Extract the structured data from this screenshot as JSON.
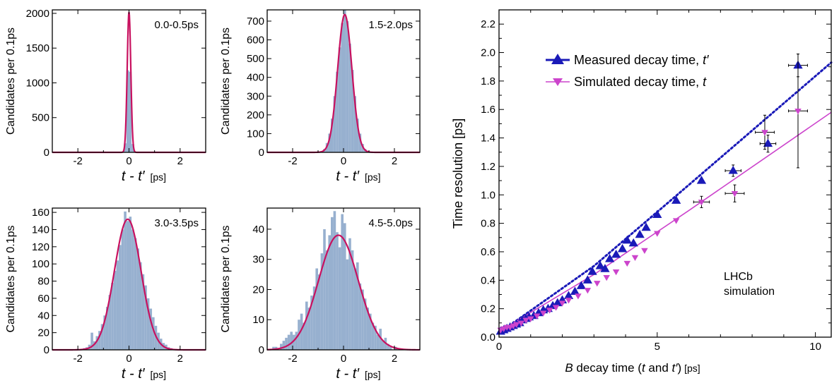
{
  "chart_data": [
    {
      "type": "bar",
      "panel_label": "0.0-0.5ps",
      "xlabel_main": "t - t′",
      "xlabel_unit": "[ps]",
      "ylabel": "Candidates per 0.1ps",
      "xlim": [
        -3,
        3
      ],
      "ylim": [
        0,
        2050
      ],
      "x_ticks": [
        -2,
        0,
        2
      ],
      "y_ticks": [
        0,
        500,
        1000,
        1500,
        2000
      ],
      "gaussian": {
        "mean": 0.0,
        "sigma": 0.07,
        "peak": 2020
      },
      "bins": [
        {
          "x": -0.25,
          "y": 8
        },
        {
          "x": -0.15,
          "y": 130
        },
        {
          "x": -0.05,
          "y": 1180
        },
        {
          "x": 0.05,
          "y": 1160
        },
        {
          "x": 0.15,
          "y": 120
        },
        {
          "x": 0.25,
          "y": 6
        }
      ]
    },
    {
      "type": "bar",
      "panel_label": "1.5-2.0ps",
      "xlabel_main": "t - t′",
      "xlabel_unit": "[ps]",
      "ylabel": "Candidates per 0.1ps",
      "xlim": [
        -3,
        3
      ],
      "ylim": [
        0,
        760
      ],
      "x_ticks": [
        -2,
        0,
        2
      ],
      "y_ticks": [
        0,
        100,
        200,
        300,
        400,
        500,
        600,
        700
      ],
      "gaussian": {
        "mean": 0.05,
        "sigma": 0.28,
        "peak": 735
      },
      "bins": [
        {
          "x": -0.95,
          "y": 2
        },
        {
          "x": -0.85,
          "y": 6
        },
        {
          "x": -0.75,
          "y": 18
        },
        {
          "x": -0.65,
          "y": 50
        },
        {
          "x": -0.55,
          "y": 100
        },
        {
          "x": -0.45,
          "y": 180
        },
        {
          "x": -0.35,
          "y": 300
        },
        {
          "x": -0.25,
          "y": 430
        },
        {
          "x": -0.15,
          "y": 560
        },
        {
          "x": -0.05,
          "y": 690
        },
        {
          "x": 0.05,
          "y": 760
        },
        {
          "x": 0.15,
          "y": 700
        },
        {
          "x": 0.25,
          "y": 580
        },
        {
          "x": 0.35,
          "y": 440
        },
        {
          "x": 0.45,
          "y": 300
        },
        {
          "x": 0.55,
          "y": 180
        },
        {
          "x": 0.65,
          "y": 100
        },
        {
          "x": 0.75,
          "y": 45
        },
        {
          "x": 0.85,
          "y": 18
        },
        {
          "x": 0.95,
          "y": 6
        }
      ]
    },
    {
      "type": "bar",
      "panel_label": "3.0-3.5ps",
      "xlabel_main": "t - t′",
      "xlabel_unit": "[ps]",
      "ylabel": "Candidates per 0.1ps",
      "xlim": [
        -3,
        3
      ],
      "ylim": [
        0,
        165
      ],
      "x_ticks": [
        -2,
        0,
        2
      ],
      "y_ticks": [
        0,
        20,
        40,
        60,
        80,
        100,
        120,
        140,
        160
      ],
      "gaussian": {
        "mean": -0.05,
        "sigma": 0.52,
        "peak": 152
      },
      "bins": [
        {
          "x": -1.75,
          "y": 2
        },
        {
          "x": -1.65,
          "y": 3
        },
        {
          "x": -1.55,
          "y": 6
        },
        {
          "x": -1.45,
          "y": 20
        },
        {
          "x": -1.35,
          "y": 10
        },
        {
          "x": -1.25,
          "y": 16
        },
        {
          "x": -1.15,
          "y": 22
        },
        {
          "x": -1.05,
          "y": 30
        },
        {
          "x": -0.95,
          "y": 40
        },
        {
          "x": -0.85,
          "y": 50
        },
        {
          "x": -0.75,
          "y": 64
        },
        {
          "x": -0.65,
          "y": 78
        },
        {
          "x": -0.55,
          "y": 92
        },
        {
          "x": -0.45,
          "y": 104
        },
        {
          "x": -0.35,
          "y": 122
        },
        {
          "x": -0.25,
          "y": 140
        },
        {
          "x": -0.15,
          "y": 161
        },
        {
          "x": -0.05,
          "y": 150
        },
        {
          "x": 0.05,
          "y": 155
        },
        {
          "x": 0.15,
          "y": 140
        },
        {
          "x": 0.25,
          "y": 130
        },
        {
          "x": 0.35,
          "y": 118
        },
        {
          "x": 0.45,
          "y": 102
        },
        {
          "x": 0.55,
          "y": 88
        },
        {
          "x": 0.65,
          "y": 75
        },
        {
          "x": 0.75,
          "y": 60
        },
        {
          "x": 0.85,
          "y": 48
        },
        {
          "x": 0.95,
          "y": 38
        },
        {
          "x": 1.05,
          "y": 28
        },
        {
          "x": 1.15,
          "y": 20
        },
        {
          "x": 1.25,
          "y": 13
        },
        {
          "x": 1.35,
          "y": 8
        },
        {
          "x": 1.45,
          "y": 6
        },
        {
          "x": 1.55,
          "y": 3
        },
        {
          "x": 1.65,
          "y": 2
        }
      ]
    },
    {
      "type": "bar",
      "panel_label": "4.5-5.0ps",
      "xlabel_main": "t - t′",
      "xlabel_unit": "[ps]",
      "ylabel": "Candidates per 0.1ps",
      "xlim": [
        -3,
        3
      ],
      "ylim": [
        0,
        47
      ],
      "x_ticks": [
        -2,
        0,
        2
      ],
      "y_ticks": [
        0,
        10,
        20,
        30,
        40
      ],
      "gaussian": {
        "mean": -0.2,
        "sigma": 0.78,
        "peak": 38
      },
      "bins": [
        {
          "x": -2.75,
          "y": 1
        },
        {
          "x": -2.65,
          "y": 1
        },
        {
          "x": -2.45,
          "y": 2
        },
        {
          "x": -2.35,
          "y": 3
        },
        {
          "x": -2.25,
          "y": 4
        },
        {
          "x": -2.15,
          "y": 5
        },
        {
          "x": -2.05,
          "y": 6
        },
        {
          "x": -1.95,
          "y": 5
        },
        {
          "x": -1.85,
          "y": 6
        },
        {
          "x": -1.75,
          "y": 10
        },
        {
          "x": -1.65,
          "y": 12
        },
        {
          "x": -1.55,
          "y": 9
        },
        {
          "x": -1.45,
          "y": 16
        },
        {
          "x": -1.35,
          "y": 14
        },
        {
          "x": -1.25,
          "y": 18
        },
        {
          "x": -1.15,
          "y": 21
        },
        {
          "x": -1.05,
          "y": 27
        },
        {
          "x": -0.95,
          "y": 25
        },
        {
          "x": -0.85,
          "y": 32
        },
        {
          "x": -0.75,
          "y": 40
        },
        {
          "x": -0.65,
          "y": 33
        },
        {
          "x": -0.55,
          "y": 38
        },
        {
          "x": -0.45,
          "y": 44
        },
        {
          "x": -0.35,
          "y": 46
        },
        {
          "x": -0.25,
          "y": 39
        },
        {
          "x": -0.15,
          "y": 34
        },
        {
          "x": -0.05,
          "y": 45
        },
        {
          "x": 0.05,
          "y": 42
        },
        {
          "x": 0.15,
          "y": 30
        },
        {
          "x": 0.25,
          "y": 37
        },
        {
          "x": 0.35,
          "y": 33
        },
        {
          "x": 0.45,
          "y": 27
        },
        {
          "x": 0.55,
          "y": 29
        },
        {
          "x": 0.65,
          "y": 22
        },
        {
          "x": 0.75,
          "y": 20
        },
        {
          "x": 0.85,
          "y": 17
        },
        {
          "x": 0.95,
          "y": 14
        },
        {
          "x": 1.05,
          "y": 12
        },
        {
          "x": 1.15,
          "y": 9
        },
        {
          "x": 1.25,
          "y": 8
        },
        {
          "x": 1.35,
          "y": 5
        },
        {
          "x": 1.45,
          "y": 7
        },
        {
          "x": 1.55,
          "y": 3
        },
        {
          "x": 1.65,
          "y": 4
        },
        {
          "x": 1.75,
          "y": 2
        },
        {
          "x": 1.85,
          "y": 1
        },
        {
          "x": 2.05,
          "y": 1
        }
      ]
    },
    {
      "type": "scatter",
      "xlabel_pre": "B",
      "xlabel_main": " decay time (",
      "xlabel_t": "t",
      "xlabel_and": " and ",
      "xlabel_tp": "t′",
      "xlabel_close": ")",
      "xlabel_unit": "[ps]",
      "ylabel": "Time resolution  [ps]",
      "xlim": [
        0,
        10.5
      ],
      "ylim": [
        0,
        2.3
      ],
      "x_ticks": [
        0,
        5,
        10
      ],
      "y_ticks": [
        0.0,
        0.2,
        0.4,
        0.6,
        0.8,
        1.0,
        1.2,
        1.4,
        1.6,
        1.8,
        2.0,
        2.2
      ],
      "annotation_line1": "LHCb",
      "annotation_line2": "simulation",
      "legend_position": "top-left",
      "series": [
        {
          "name": "Measured decay time, t′",
          "legend_text": "Measured decay time, ",
          "legend_var": "t′",
          "color": "#1a1ab8",
          "marker": "triangle-up",
          "fit": {
            "style": "dotted",
            "points": [
              [
                0,
                0.03
              ],
              [
                3.0,
                0.5
              ],
              [
                6.0,
                1.07
              ],
              [
                10.5,
                1.93
              ]
            ]
          },
          "points": [
            {
              "x": 0.05,
              "y": 0.04
            },
            {
              "x": 0.15,
              "y": 0.05
            },
            {
              "x": 0.25,
              "y": 0.06
            },
            {
              "x": 0.35,
              "y": 0.07
            },
            {
              "x": 0.45,
              "y": 0.08
            },
            {
              "x": 0.55,
              "y": 0.09
            },
            {
              "x": 0.65,
              "y": 0.1
            },
            {
              "x": 0.75,
              "y": 0.12
            },
            {
              "x": 0.85,
              "y": 0.13
            },
            {
              "x": 0.95,
              "y": 0.14
            },
            {
              "x": 1.1,
              "y": 0.15
            },
            {
              "x": 1.25,
              "y": 0.17
            },
            {
              "x": 1.4,
              "y": 0.19
            },
            {
              "x": 1.55,
              "y": 0.2
            },
            {
              "x": 1.7,
              "y": 0.22
            },
            {
              "x": 1.85,
              "y": 0.24
            },
            {
              "x": 2.0,
              "y": 0.26
            },
            {
              "x": 2.2,
              "y": 0.29
            },
            {
              "x": 2.4,
              "y": 0.32
            },
            {
              "x": 2.6,
              "y": 0.36
            },
            {
              "x": 2.8,
              "y": 0.4
            },
            {
              "x": 2.95,
              "y": 0.46
            },
            {
              "x": 3.2,
              "y": 0.5
            },
            {
              "x": 3.35,
              "y": 0.48
            },
            {
              "x": 3.5,
              "y": 0.55
            },
            {
              "x": 3.7,
              "y": 0.58
            },
            {
              "x": 3.9,
              "y": 0.62
            },
            {
              "x": 4.05,
              "y": 0.68
            },
            {
              "x": 4.25,
              "y": 0.66
            },
            {
              "x": 4.45,
              "y": 0.72
            },
            {
              "x": 4.65,
              "y": 0.77
            },
            {
              "x": 5.0,
              "y": 0.86
            },
            {
              "x": 5.6,
              "y": 0.96
            },
            {
              "x": 6.4,
              "y": 1.1
            },
            {
              "x": 7.4,
              "y": 1.17,
              "ex": 0.25,
              "ey": 0.04
            },
            {
              "x": 8.5,
              "y": 1.36,
              "ex": 0.25,
              "ey": 0.06
            },
            {
              "x": 9.45,
              "y": 1.91,
              "ex": 0.3,
              "ey": 0.08
            }
          ]
        },
        {
          "name": "Simulated decay time, t",
          "legend_text": "Simulated decay time, ",
          "legend_var": "t",
          "color": "#cc44cc",
          "marker": "triangle-down",
          "fit": {
            "style": "solid",
            "points": [
              [
                0,
                0.04
              ],
              [
                3.0,
                0.44
              ],
              [
                6.0,
                0.89
              ],
              [
                10.5,
                1.58
              ]
            ]
          },
          "points": [
            {
              "x": 0.05,
              "y": 0.05
            },
            {
              "x": 0.15,
              "y": 0.06
            },
            {
              "x": 0.25,
              "y": 0.07
            },
            {
              "x": 0.35,
              "y": 0.07
            },
            {
              "x": 0.45,
              "y": 0.08
            },
            {
              "x": 0.55,
              "y": 0.09
            },
            {
              "x": 0.7,
              "y": 0.1
            },
            {
              "x": 0.85,
              "y": 0.12
            },
            {
              "x": 1.0,
              "y": 0.13
            },
            {
              "x": 1.2,
              "y": 0.15
            },
            {
              "x": 1.4,
              "y": 0.17
            },
            {
              "x": 1.6,
              "y": 0.19
            },
            {
              "x": 1.8,
              "y": 0.21
            },
            {
              "x": 2.0,
              "y": 0.24
            },
            {
              "x": 2.2,
              "y": 0.26
            },
            {
              "x": 2.5,
              "y": 0.29
            },
            {
              "x": 2.8,
              "y": 0.33
            },
            {
              "x": 3.1,
              "y": 0.38
            },
            {
              "x": 3.4,
              "y": 0.42
            },
            {
              "x": 3.7,
              "y": 0.46
            },
            {
              "x": 4.05,
              "y": 0.52
            },
            {
              "x": 4.3,
              "y": 0.56
            },
            {
              "x": 4.6,
              "y": 0.61
            },
            {
              "x": 5.0,
              "y": 0.73
            },
            {
              "x": 5.6,
              "y": 0.82
            },
            {
              "x": 6.4,
              "y": 0.95,
              "ex": 0.25,
              "ey": 0.04
            },
            {
              "x": 7.45,
              "y": 1.01,
              "ex": 0.3,
              "ey": 0.06
            },
            {
              "x": 8.4,
              "y": 1.44,
              "ex": 0.3,
              "ey": 0.12
            },
            {
              "x": 9.45,
              "y": 1.59,
              "ex": 0.3,
              "ey": 0.4
            }
          ]
        }
      ]
    }
  ]
}
